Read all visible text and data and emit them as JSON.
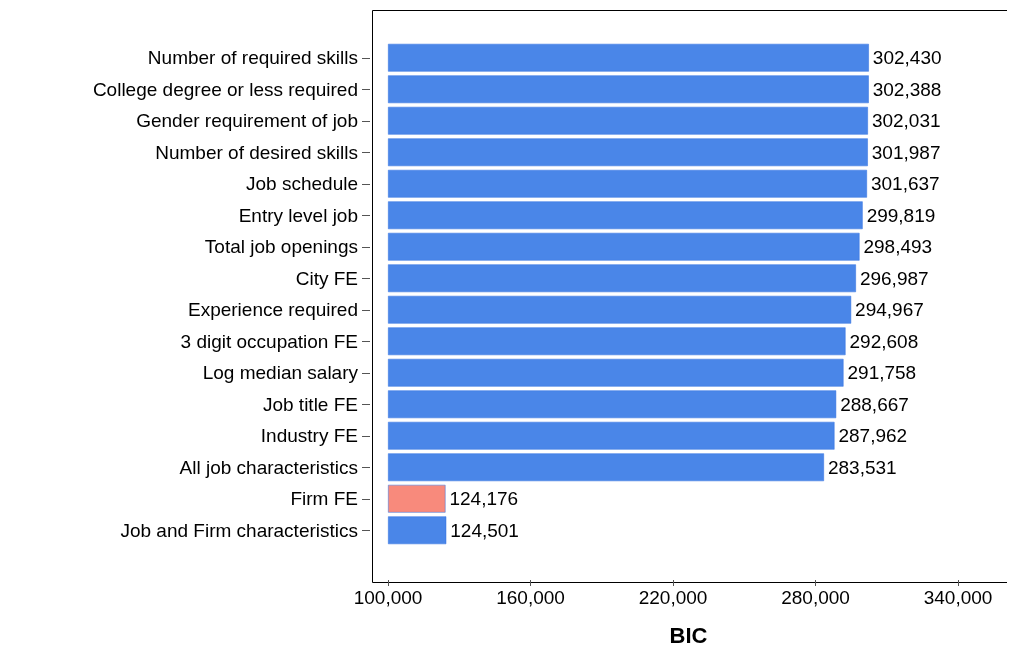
{
  "chart_data": {
    "type": "bar",
    "orientation": "horizontal",
    "xlabel": "BIC",
    "categories": [
      "Number of required skills",
      "College degree or less required",
      "Gender requirement of job",
      "Number of desired skills",
      "Job schedule",
      "Entry level job",
      "Total job openings",
      "City FE",
      "Experience required",
      "3 digit occupation FE",
      "Log median salary",
      "Job title FE",
      "Industry FE",
      "All job characteristics",
      "Firm FE",
      "Job and Firm characteristics"
    ],
    "base": [
      100000,
      100000,
      100000,
      100000,
      100000,
      100000,
      100000,
      100000,
      100000,
      100000,
      100000,
      100000,
      100000,
      100000,
      100000,
      100000
    ],
    "values": [
      202430,
      202388,
      202031,
      201987,
      201637,
      199819,
      198493,
      196987,
      194967,
      192608,
      191758,
      188667,
      187962,
      183531,
      24176,
      24501
    ],
    "value_labels": [
      "302,430",
      "302,388",
      "302,031",
      "301,987",
      "301,637",
      "299,819",
      "298,493",
      "296,987",
      "294,967",
      "292,608",
      "291,758",
      "288,667",
      "287,962",
      "283,531",
      "124,176",
      "124,501"
    ],
    "colors": [
      "#4a86e8",
      "#4a86e8",
      "#4a86e8",
      "#4a86e8",
      "#4a86e8",
      "#4a86e8",
      "#4a86e8",
      "#4a86e8",
      "#4a86e8",
      "#4a86e8",
      "#4a86e8",
      "#4a86e8",
      "#4a86e8",
      "#4a86e8",
      "#f88a7c",
      "#4a86e8"
    ],
    "xlim": [
      92400,
      360600
    ],
    "xticks": [
      {
        "value": 100000,
        "label": "100,000"
      },
      {
        "value": 160000,
        "label": "160,000"
      },
      {
        "value": 220000,
        "label": "220,000"
      },
      {
        "value": 280000,
        "label": "280,000"
      },
      {
        "value": 340000,
        "label": "340,000"
      }
    ],
    "grid": false
  }
}
